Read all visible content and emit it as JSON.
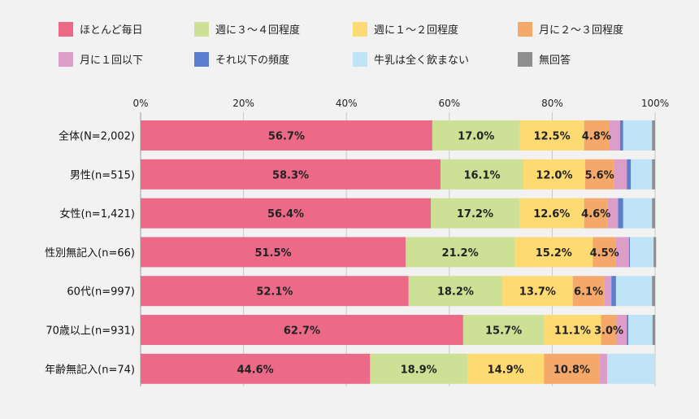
{
  "chart_data": {
    "type": "bar",
    "orientation": "horizontal",
    "stacked": true,
    "percent_stacked": true,
    "categories": [
      "全体(N=2,002)",
      "男性(n=515)",
      "女性(n=1,421)",
      "性別無記入(n=66)",
      "60代(n=997)",
      "70歳以上(n=931)",
      "年齢無記入(n=74)"
    ],
    "x_ticks": [
      "0%",
      "20%",
      "40%",
      "60%",
      "80%",
      "100%"
    ],
    "xlim": [
      0,
      100
    ],
    "legend_position": "top",
    "grid": true,
    "series": [
      {
        "name": "ほとんど毎日",
        "color": "#ec6a88",
        "values": [
          56.7,
          58.3,
          56.4,
          51.5,
          52.1,
          62.7,
          44.6
        ],
        "labels": [
          "56.7%",
          "58.3%",
          "56.4%",
          "51.5%",
          "52.1%",
          "62.7%",
          "44.6%"
        ]
      },
      {
        "name": "週に３～４回程度",
        "color": "#cce096",
        "values": [
          17.0,
          16.1,
          17.2,
          21.2,
          18.2,
          15.7,
          18.9
        ],
        "labels": [
          "17.0%",
          "16.1%",
          "17.2%",
          "21.2%",
          "18.2%",
          "15.7%",
          "18.9%"
        ]
      },
      {
        "name": "週に１～２回程度",
        "color": "#fdda72",
        "values": [
          12.5,
          12.0,
          12.6,
          15.2,
          13.7,
          11.1,
          14.9
        ],
        "labels": [
          "12.5%",
          "12.0%",
          "12.6%",
          "15.2%",
          "13.7%",
          "11.1%",
          "14.9%"
        ]
      },
      {
        "name": "月に２～３回程度",
        "color": "#f4a86a",
        "values": [
          4.8,
          5.6,
          4.6,
          4.5,
          6.1,
          3.0,
          10.8
        ],
        "labels": [
          "4.8%",
          "5.6%",
          "4.6%",
          "4.5%",
          "6.1%",
          "3.0%",
          "10.8%"
        ]
      },
      {
        "name": "月に１回以下",
        "color": "#dc9ec8",
        "values": [
          2.2,
          2.5,
          2.0,
          2.5,
          1.4,
          2.0,
          1.5
        ],
        "labels": [
          "",
          "",
          "",
          "",
          "",
          "",
          ""
        ]
      },
      {
        "name": "それ以下の頻度",
        "color": "#5a7fd0",
        "values": [
          0.6,
          0.8,
          1.0,
          0.2,
          0.9,
          0.3,
          0.0
        ],
        "labels": [
          "",
          "",
          "",
          "",
          "",
          "",
          ""
        ]
      },
      {
        "name": "牛乳は全く飲まない",
        "color": "#bfe4f7",
        "values": [
          5.6,
          4.1,
          5.6,
          4.6,
          7.0,
          4.7,
          9.3
        ],
        "labels": [
          "",
          "",
          "",
          "",
          "",
          "",
          ""
        ]
      },
      {
        "name": "無回答",
        "color": "#8e8e8e",
        "values": [
          0.6,
          0.6,
          0.6,
          0.5,
          0.6,
          0.5,
          0.0
        ],
        "labels": [
          "",
          "",
          "",
          "",
          "",
          "",
          ""
        ]
      }
    ]
  }
}
